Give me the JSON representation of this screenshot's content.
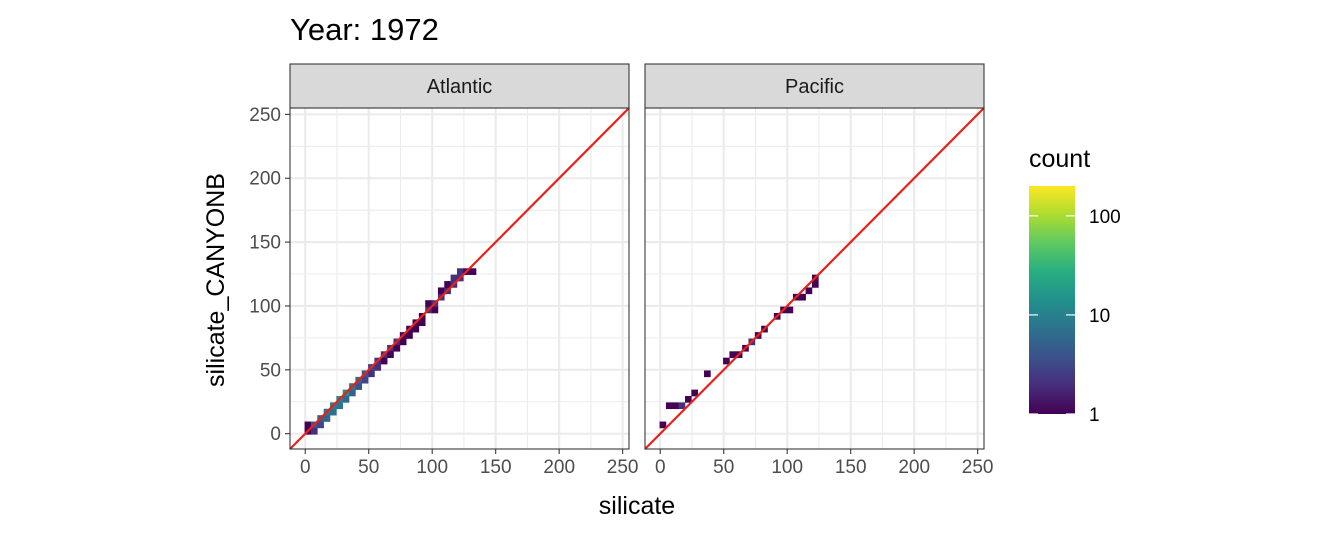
{
  "chart_data": {
    "type": "heatmap",
    "title": "Year: 1972",
    "xlabel": "silicate",
    "ylabel": "silicate_CANYONB",
    "xlim": [
      -12,
      255
    ],
    "ylim": [
      -12,
      255
    ],
    "x_ticks": [
      0,
      50,
      100,
      150,
      200,
      250
    ],
    "y_ticks": [
      0,
      50,
      100,
      150,
      200,
      250
    ],
    "grid": true,
    "bin_width": 5,
    "reference_line": {
      "slope": 1,
      "intercept": 0,
      "color": "#e8211a"
    },
    "facets": [
      {
        "label": "Atlantic",
        "bins": [
          [
            2,
            2,
            1
          ],
          [
            2,
            7,
            1
          ],
          [
            7,
            7,
            4
          ],
          [
            7,
            2,
            2
          ],
          [
            12,
            12,
            5
          ],
          [
            12,
            7,
            3
          ],
          [
            17,
            17,
            8
          ],
          [
            17,
            12,
            6
          ],
          [
            22,
            22,
            10
          ],
          [
            22,
            17,
            7
          ],
          [
            27,
            27,
            12
          ],
          [
            27,
            22,
            8
          ],
          [
            32,
            32,
            14
          ],
          [
            32,
            27,
            6
          ],
          [
            37,
            37,
            10
          ],
          [
            37,
            32,
            5
          ],
          [
            42,
            42,
            6
          ],
          [
            42,
            37,
            4
          ],
          [
            47,
            47,
            4
          ],
          [
            47,
            42,
            3
          ],
          [
            52,
            52,
            3
          ],
          [
            52,
            47,
            2
          ],
          [
            57,
            57,
            2
          ],
          [
            57,
            52,
            2
          ],
          [
            62,
            62,
            2
          ],
          [
            62,
            57,
            1
          ],
          [
            67,
            67,
            2
          ],
          [
            67,
            62,
            1
          ],
          [
            72,
            72,
            2
          ],
          [
            72,
            67,
            1
          ],
          [
            77,
            77,
            1
          ],
          [
            77,
            72,
            1
          ],
          [
            82,
            77,
            1
          ],
          [
            82,
            82,
            1
          ],
          [
            87,
            87,
            1
          ],
          [
            87,
            82,
            1
          ],
          [
            92,
            92,
            1
          ],
          [
            92,
            87,
            1
          ],
          [
            97,
            97,
            2
          ],
          [
            97,
            102,
            1
          ],
          [
            102,
            102,
            2
          ],
          [
            102,
            97,
            1
          ],
          [
            107,
            107,
            2
          ],
          [
            107,
            112,
            1
          ],
          [
            112,
            112,
            2
          ],
          [
            112,
            117,
            1
          ],
          [
            117,
            117,
            2
          ],
          [
            117,
            122,
            2
          ],
          [
            122,
            122,
            2
          ],
          [
            122,
            127,
            2
          ],
          [
            127,
            127,
            1
          ],
          [
            132,
            127,
            1
          ]
        ]
      },
      {
        "label": "Pacific",
        "bins": [
          [
            2,
            7,
            1
          ],
          [
            7,
            22,
            1
          ],
          [
            12,
            22,
            1
          ],
          [
            17,
            22,
            2
          ],
          [
            22,
            27,
            1
          ],
          [
            27,
            32,
            1
          ],
          [
            37,
            47,
            1
          ],
          [
            52,
            57,
            1
          ],
          [
            57,
            62,
            1
          ],
          [
            62,
            62,
            1
          ],
          [
            67,
            67,
            1
          ],
          [
            72,
            72,
            2
          ],
          [
            77,
            77,
            1
          ],
          [
            82,
            82,
            1
          ],
          [
            92,
            92,
            1
          ],
          [
            97,
            97,
            1
          ],
          [
            102,
            97,
            1
          ],
          [
            107,
            107,
            1
          ],
          [
            112,
            107,
            1
          ],
          [
            117,
            112,
            1
          ],
          [
            122,
            117,
            1
          ],
          [
            122,
            122,
            1
          ]
        ]
      }
    ],
    "legend": {
      "title": "count",
      "position": "right",
      "scale": "log10",
      "range": [
        1,
        200
      ],
      "labels": [
        "100",
        "10",
        "1"
      ],
      "label_values": [
        100,
        10,
        1
      ],
      "colormap": "viridis"
    }
  }
}
